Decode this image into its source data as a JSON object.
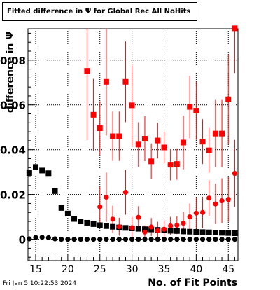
{
  "title": "Fitted difference in Ψ  for Global Rec All NoHits",
  "footer_timestamp": "Fri Jan  5 10:22:53 2024",
  "colors": {
    "black_series": "#000000",
    "red_series": "#ff0000",
    "grid": "#000000"
  },
  "chart_data": {
    "type": "scatter",
    "title": "Fitted difference in Ψ  for Global Rec All NoHits",
    "xlabel": "No. of Fit Points",
    "ylabel": "difference in  Ψ",
    "xlim": [
      13.8,
      46.5
    ],
    "ylim": [
      -0.0095,
      0.094
    ],
    "grid": true,
    "x_ticks": [
      15,
      20,
      25,
      30,
      35,
      40,
      45
    ],
    "x_tick_labels": [
      "15",
      "20",
      "25",
      "30",
      "35",
      "40",
      "45"
    ],
    "y_ticks": [
      0,
      0.02,
      0.04,
      0.06,
      0.08
    ],
    "y_tick_labels": [
      "0",
      "0.02",
      "0.04",
      "0.06",
      "0.08"
    ],
    "series": [
      {
        "marker": "square",
        "color": "#000000",
        "points": [
          {
            "x": 14,
            "y": 0.0296
          },
          {
            "x": 15,
            "y": 0.0323
          },
          {
            "x": 16,
            "y": 0.0307
          },
          {
            "x": 17,
            "y": 0.0295
          },
          {
            "x": 18,
            "y": 0.0215
          },
          {
            "x": 19,
            "y": 0.014
          },
          {
            "x": 20,
            "y": 0.0115
          },
          {
            "x": 21,
            "y": 0.0091
          },
          {
            "x": 22,
            "y": 0.008
          },
          {
            "x": 23,
            "y": 0.0074
          },
          {
            "x": 24,
            "y": 0.0068
          },
          {
            "x": 25,
            "y": 0.0063
          },
          {
            "x": 26,
            "y": 0.0059
          },
          {
            "x": 27,
            "y": 0.0056
          },
          {
            "x": 28,
            "y": 0.0053
          },
          {
            "x": 29,
            "y": 0.0051
          },
          {
            "x": 30,
            "y": 0.0049
          },
          {
            "x": 31,
            "y": 0.0047
          },
          {
            "x": 32,
            "y": 0.0045
          },
          {
            "x": 33,
            "y": 0.0044
          },
          {
            "x": 34,
            "y": 0.0042
          },
          {
            "x": 35,
            "y": 0.004
          },
          {
            "x": 36,
            "y": 0.0038
          },
          {
            "x": 37,
            "y": 0.0037
          },
          {
            "x": 38,
            "y": 0.0035
          },
          {
            "x": 39,
            "y": 0.0034
          },
          {
            "x": 40,
            "y": 0.0033
          },
          {
            "x": 41,
            "y": 0.0032
          },
          {
            "x": 42,
            "y": 0.0031
          },
          {
            "x": 43,
            "y": 0.003
          },
          {
            "x": 44,
            "y": 0.0029
          },
          {
            "x": 45,
            "y": 0.0028
          },
          {
            "x": 46,
            "y": 0.0027
          }
        ]
      },
      {
        "marker": "circle",
        "color": "#000000",
        "points": [
          {
            "x": 14,
            "y": 0.0002
          },
          {
            "x": 15,
            "y": 0.0008
          },
          {
            "x": 16,
            "y": 0.0009
          },
          {
            "x": 17,
            "y": 0.0007
          },
          {
            "x": 18,
            "y": 0.0002
          },
          {
            "x": 19,
            "y": 0.0
          },
          {
            "x": 20,
            "y": 0.0
          },
          {
            "x": 21,
            "y": 0.0
          },
          {
            "x": 22,
            "y": 0.0
          },
          {
            "x": 23,
            "y": 0.0
          },
          {
            "x": 24,
            "y": 0.0
          },
          {
            "x": 25,
            "y": 0.0
          },
          {
            "x": 26,
            "y": 0.0
          },
          {
            "x": 27,
            "y": 0.0
          },
          {
            "x": 28,
            "y": 0.0
          },
          {
            "x": 29,
            "y": 0.0
          },
          {
            "x": 30,
            "y": 0.0
          },
          {
            "x": 31,
            "y": 0.0
          },
          {
            "x": 32,
            "y": 0.0
          },
          {
            "x": 33,
            "y": 0.0
          },
          {
            "x": 34,
            "y": 0.0
          },
          {
            "x": 35,
            "y": 0.0
          },
          {
            "x": 36,
            "y": 0.0
          },
          {
            "x": 37,
            "y": 0.0
          },
          {
            "x": 38,
            "y": 0.0
          },
          {
            "x": 39,
            "y": 0.0
          },
          {
            "x": 40,
            "y": 0.0
          },
          {
            "x": 41,
            "y": 0.0
          },
          {
            "x": 42,
            "y": 0.0
          },
          {
            "x": 43,
            "y": 0.0
          },
          {
            "x": 44,
            "y": 0.0
          },
          {
            "x": 45,
            "y": 0.0
          },
          {
            "x": 46,
            "y": 0.0
          }
        ]
      },
      {
        "marker": "square",
        "color": "#ff0000",
        "points": [
          {
            "x": 23,
            "y": 0.0752,
            "err": 0.031
          },
          {
            "x": 24,
            "y": 0.0556,
            "err": 0.016
          },
          {
            "x": 25,
            "y": 0.0496,
            "err": 0.012
          },
          {
            "x": 26,
            "y": 0.0703,
            "err": 0.024
          },
          {
            "x": 27,
            "y": 0.046,
            "err": 0.011
          },
          {
            "x": 28,
            "y": 0.046,
            "err": 0.011
          },
          {
            "x": 29,
            "y": 0.0703,
            "err": 0.018
          },
          {
            "x": 30,
            "y": 0.0598,
            "err": 0.018
          },
          {
            "x": 31,
            "y": 0.0423,
            "err": 0.01
          },
          {
            "x": 32,
            "y": 0.0449,
            "err": 0.01
          },
          {
            "x": 33,
            "y": 0.0348,
            "err": 0.008
          },
          {
            "x": 34,
            "y": 0.0441,
            "err": 0.008
          },
          {
            "x": 35,
            "y": 0.041,
            "err": 0.007
          },
          {
            "x": 36,
            "y": 0.0333,
            "err": 0.007
          },
          {
            "x": 37,
            "y": 0.0336,
            "err": 0.007
          },
          {
            "x": 38,
            "y": 0.0432,
            "err": 0.012
          },
          {
            "x": 39,
            "y": 0.0591,
            "err": 0.014
          },
          {
            "x": 40,
            "y": 0.0574,
            "err": 0.013
          },
          {
            "x": 41,
            "y": 0.0436,
            "err": 0.01
          },
          {
            "x": 42,
            "y": 0.0397,
            "err": 0.01
          },
          {
            "x": 43,
            "y": 0.0472,
            "err": 0.015
          },
          {
            "x": 44,
            "y": 0.0472,
            "err": 0.015
          },
          {
            "x": 45,
            "y": 0.0625,
            "err": 0.02
          },
          {
            "x": 46,
            "y": 0.0942,
            "err": 0.02
          }
        ]
      },
      {
        "marker": "circle",
        "color": "#ff0000",
        "points": [
          {
            "x": 25,
            "y": 0.0145,
            "err": 0.009
          },
          {
            "x": 26,
            "y": 0.0188,
            "err": 0.011
          },
          {
            "x": 27,
            "y": 0.009,
            "err": 0.006
          },
          {
            "x": 28,
            "y": 0.0056,
            "err": 0.004
          },
          {
            "x": 29,
            "y": 0.021,
            "err": 0.01
          },
          {
            "x": 30,
            "y": 0.0052,
            "err": 0.005
          },
          {
            "x": 31,
            "y": 0.0098,
            "err": 0.005
          },
          {
            "x": 32,
            "y": 0.0032,
            "err": 0.003
          },
          {
            "x": 33,
            "y": 0.0055,
            "err": 0.004
          },
          {
            "x": 34,
            "y": 0.0038,
            "err": 0.004
          },
          {
            "x": 35,
            "y": 0.0045,
            "err": 0.004
          },
          {
            "x": 36,
            "y": 0.006,
            "err": 0.004
          },
          {
            "x": 37,
            "y": 0.0063,
            "err": 0.004
          },
          {
            "x": 38,
            "y": 0.0072,
            "err": 0.005
          },
          {
            "x": 39,
            "y": 0.01,
            "err": 0.006
          },
          {
            "x": 40,
            "y": 0.0117,
            "err": 0.007
          },
          {
            "x": 41,
            "y": 0.012,
            "err": 0.007
          },
          {
            "x": 42,
            "y": 0.0184,
            "err": 0.008
          },
          {
            "x": 43,
            "y": 0.0158,
            "err": 0.009
          },
          {
            "x": 44,
            "y": 0.0172,
            "err": 0.01
          },
          {
            "x": 45,
            "y": 0.0178,
            "err": 0.01
          },
          {
            "x": 46,
            "y": 0.0294,
            "err": 0.015
          }
        ]
      }
    ]
  }
}
